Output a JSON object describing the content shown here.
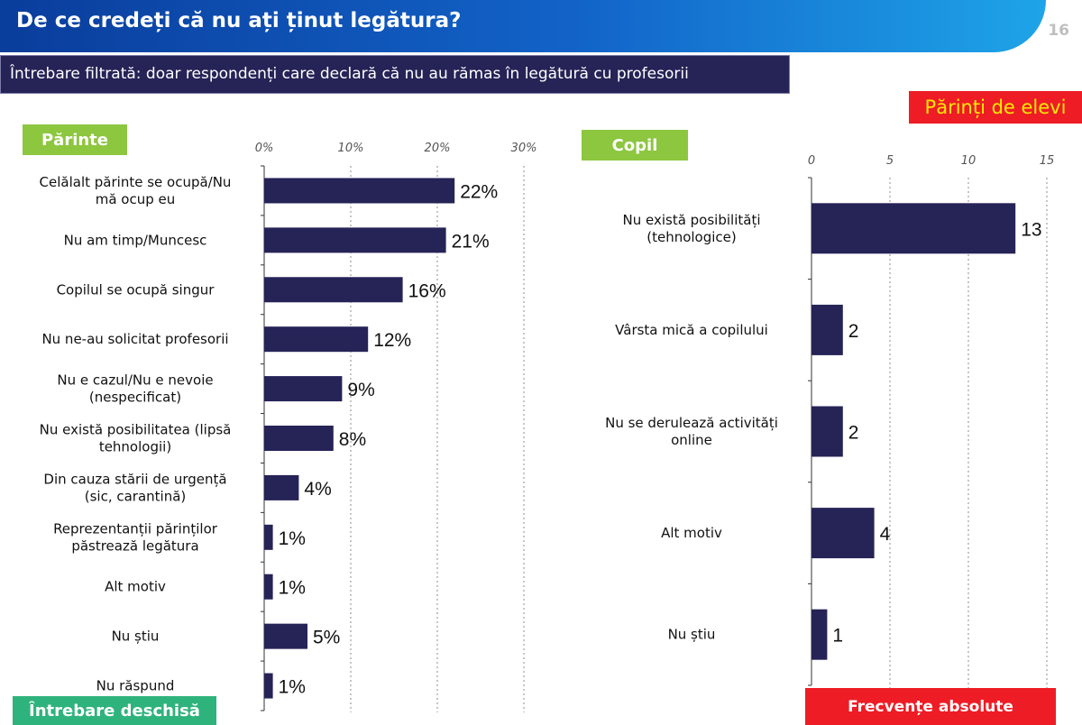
{
  "header": {
    "title": "De ce credeți că nu ați ținut legătura?",
    "page_number": "16"
  },
  "subtitle": "Întrebare filtrată: doar respondenți care declară că nu au rămas în legătură cu profesorii",
  "respondent_badge": "Părinți de elevi",
  "footer": {
    "question_type": "Întrebare deschisă",
    "measure": "Frecvențe absolute"
  },
  "colors": {
    "bar": "#262357",
    "header": "#0a3d9c",
    "green_tag": "#8dc63f",
    "red_badge": "#ee1c25"
  },
  "chart_data": [
    {
      "type": "bar",
      "orientation": "horizontal",
      "title": "Părinte",
      "x_ticks": [
        "0%",
        "10%",
        "20%",
        "30%"
      ],
      "xlim": [
        0,
        30
      ],
      "grid": true,
      "categories": [
        [
          "Celălalt părinte se ocupă/Nu",
          "mă ocup eu"
        ],
        [
          "Nu am timp/Muncesc"
        ],
        [
          "Copilul se ocupă singur"
        ],
        [
          "Nu ne-au solicitat profesorii"
        ],
        [
          "Nu e cazul/Nu e nevoie",
          "(nespecificat)"
        ],
        [
          "Nu există posibilitatea (lipsă",
          "tehnologii)"
        ],
        [
          "Din cauza stării de urgență",
          "(sic, carantină)"
        ],
        [
          "Reprezentanții părinților",
          "păstrează legătura"
        ],
        [
          "Alt motiv"
        ],
        [
          "Nu știu"
        ],
        [
          "Nu răspund"
        ]
      ],
      "values": [
        22,
        21,
        16,
        12,
        9,
        8,
        4,
        1,
        1,
        5,
        1
      ],
      "labels": [
        "22%",
        "21%",
        "16%",
        "12%",
        "9%",
        "8%",
        "4%",
        "1%",
        "1%",
        "5%",
        "1%"
      ]
    },
    {
      "type": "bar",
      "orientation": "horizontal",
      "title": "Copil",
      "x_ticks": [
        "0",
        "5",
        "10",
        "15"
      ],
      "xlim": [
        0,
        15
      ],
      "grid": true,
      "categories": [
        [
          "Nu există posibilități",
          "(tehnologice)"
        ],
        [
          "Vârsta mică a copilului"
        ],
        [
          "Nu se derulează activități",
          "online"
        ],
        [
          "Alt motiv"
        ],
        [
          "Nu știu"
        ]
      ],
      "values": [
        13,
        2,
        2,
        4,
        1
      ],
      "labels": [
        "13",
        "2",
        "2",
        "4",
        "1"
      ]
    }
  ]
}
